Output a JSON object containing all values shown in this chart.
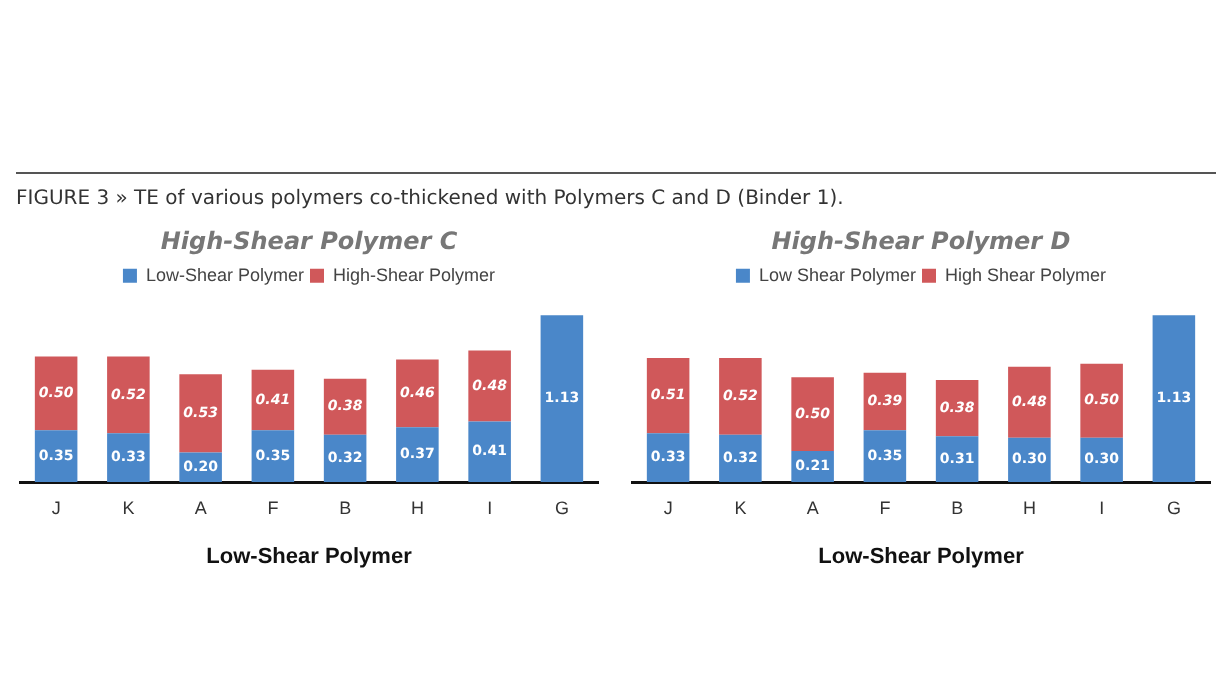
{
  "chart_data": [
    {
      "type": "bar",
      "title": "High-Shear Polymer C",
      "xlabel": "Low-Shear Polymer",
      "annotations": [
        "FIGURE 3 » TE of various polymers co-thickened with Polymers C and D (Binder 1)."
      ],
      "categories": [
        "J",
        "K",
        "A",
        "F",
        "B",
        "H",
        "I",
        "G"
      ],
      "stacked": true,
      "legend": "top",
      "tick_labels": "x",
      "grid": false,
      "series": [
        {
          "name": "Low-Shear Polymer",
          "color": "#4a87c9",
          "values": [
            0.35,
            0.33,
            0.2,
            0.35,
            0.32,
            0.37,
            0.41,
            1.13
          ],
          "value_labels": [
            "0.35",
            "0.33",
            "0.20",
            "0.35",
            "0.32",
            "0.37",
            "0.41",
            "1.13"
          ]
        },
        {
          "name": "High-Shear Polymer",
          "color": "#d0585a",
          "values": [
            0.5,
            0.52,
            0.53,
            0.41,
            0.38,
            0.46,
            0.48,
            null
          ],
          "value_labels": [
            "0.50",
            "0.52",
            "0.53",
            "0.41",
            "0.38",
            "0.46",
            "0.48",
            null
          ]
        }
      ]
    },
    {
      "type": "bar",
      "title": "High-Shear Polymer D",
      "xlabel": "Low-Shear Polymer",
      "categories": [
        "J",
        "K",
        "A",
        "F",
        "B",
        "H",
        "I",
        "G"
      ],
      "stacked": true,
      "legend": "top",
      "tick_labels": "x",
      "grid": false,
      "series": [
        {
          "name": "Low Shear Polymer",
          "color": "#4a87c9",
          "values": [
            0.33,
            0.32,
            0.21,
            0.35,
            0.31,
            0.3,
            0.3,
            1.13
          ],
          "value_labels": [
            "0.33",
            "0.32",
            "0.21",
            "0.35",
            "0.31",
            "0.30",
            "0.30",
            "1.13"
          ]
        },
        {
          "name": "High Shear Polymer",
          "color": "#d0585a",
          "values": [
            0.51,
            0.52,
            0.5,
            0.39,
            0.38,
            0.48,
            0.5,
            null
          ],
          "value_labels": [
            "0.51",
            "0.52",
            "0.50",
            "0.39",
            "0.38",
            "0.48",
            "0.50",
            null
          ]
        }
      ]
    }
  ]
}
